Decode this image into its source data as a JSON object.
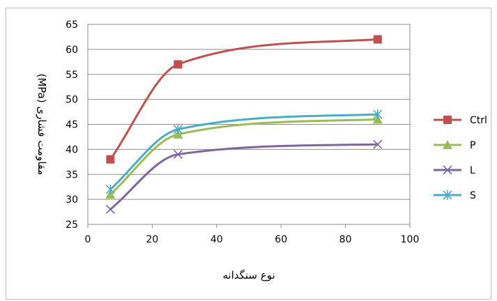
{
  "chart_data": {
    "type": "line",
    "title": "",
    "xlabel": "نوع سنگدانه",
    "ylabel": "مقاومت فشاری  (MPa)",
    "xlim": [
      0,
      100
    ],
    "ylim": [
      25,
      65
    ],
    "xticks": [
      0,
      20,
      40,
      60,
      80,
      100
    ],
    "yticks": [
      25,
      30,
      35,
      40,
      45,
      50,
      55,
      60,
      65
    ],
    "grid": "horizontal",
    "legend_position": "right",
    "smooth": true,
    "x": [
      7,
      28,
      90
    ],
    "series": [
      {
        "name": "Ctrl",
        "values": [
          38,
          57,
          62
        ],
        "color": "#c0504d",
        "marker": "square"
      },
      {
        "name": "P",
        "values": [
          31,
          43,
          46
        ],
        "color": "#9bbb59",
        "marker": "triangle"
      },
      {
        "name": "L",
        "values": [
          28,
          39,
          41
        ],
        "color": "#8064a2",
        "marker": "x"
      },
      {
        "name": "S",
        "values": [
          32,
          44,
          47
        ],
        "color": "#4bacc6",
        "marker": "star"
      }
    ]
  }
}
